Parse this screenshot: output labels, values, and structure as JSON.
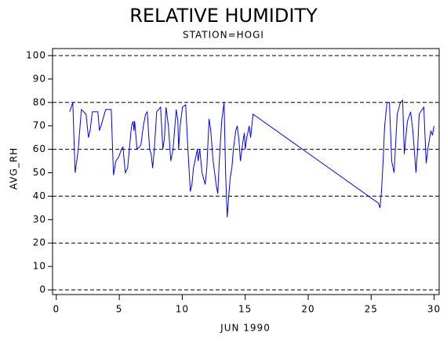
{
  "chart_data": {
    "type": "line",
    "title": "RELATIVE HUMIDITY",
    "subtitle": "STATION=HOGI",
    "x_label": "JUN 1990",
    "y_label": "AVG_RH",
    "xlim": [
      -0.3,
      30.4
    ],
    "ylim": [
      -2,
      103
    ],
    "xticks": [
      0,
      5,
      10,
      15,
      20,
      25,
      30
    ],
    "yticks": [
      0,
      10,
      20,
      30,
      40,
      50,
      60,
      70,
      80,
      90,
      100
    ],
    "ygrid": [
      0,
      20,
      40,
      60,
      80,
      100
    ],
    "series": [
      {
        "color": "#0000ff",
        "x": [
          1.06,
          1.31,
          1.49,
          1.62,
          1.74,
          1.99,
          2.36,
          2.55,
          2.68,
          2.86,
          3.3,
          3.42,
          3.55,
          3.92,
          4.36,
          4.54,
          4.73,
          4.98,
          5.16,
          5.29,
          5.48,
          5.66,
          5.97,
          6.1,
          6.16,
          6.22,
          6.41,
          6.6,
          6.72,
          6.91,
          7.09,
          7.22,
          7.41,
          7.53,
          7.65,
          7.78,
          7.97,
          8.28,
          8.46,
          8.59,
          8.71,
          8.9,
          9.09,
          9.27,
          9.52,
          9.65,
          9.71,
          9.83,
          10.02,
          10.27,
          10.45,
          10.64,
          10.77,
          10.89,
          11.2,
          11.26,
          11.39,
          11.57,
          11.82,
          11.95,
          12.13,
          12.26,
          12.45,
          12.69,
          12.82,
          12.94,
          13.13,
          13.32,
          13.44,
          13.57,
          13.69,
          13.81,
          13.94,
          14.06,
          14.25,
          14.37,
          14.5,
          14.62,
          14.81,
          14.93,
          15.0,
          15.12,
          15.25,
          15.31,
          15.43,
          15.62,
          25.58,
          25.7,
          25.82,
          25.95,
          26.07,
          26.26,
          26.45,
          26.63,
          26.82,
          26.94,
          27.07,
          27.32,
          27.5,
          27.63,
          27.75,
          27.88,
          28.13,
          28.31,
          28.56,
          28.69,
          28.81,
          29.18,
          29.37,
          29.5,
          29.74,
          29.87,
          29.99
        ],
        "values": [
          76,
          80,
          50,
          55,
          60,
          77,
          75,
          65,
          68,
          76,
          76,
          68,
          70,
          77,
          77,
          49,
          55,
          57,
          60,
          61,
          50,
          52,
          70,
          72,
          68,
          72,
          60,
          61,
          62,
          70,
          75,
          76,
          60,
          58,
          52,
          60,
          76,
          78,
          60,
          65,
          78,
          70,
          55,
          60,
          77,
          72,
          60,
          70,
          78,
          79,
          60,
          42,
          45,
          52,
          60,
          55,
          60,
          50,
          45,
          52,
          73,
          68,
          55,
          45,
          41,
          55,
          72,
          80,
          50,
          31,
          40,
          48,
          52,
          60,
          68,
          70,
          64,
          55,
          63,
          67,
          60,
          65,
          68,
          70,
          65,
          75,
          37,
          35,
          42,
          55,
          70,
          80,
          80,
          55,
          50,
          62,
          75,
          80,
          81,
          58,
          65,
          72,
          76,
          68,
          50,
          60,
          75,
          78,
          54,
          60,
          68,
          66,
          70
        ]
      }
    ]
  }
}
